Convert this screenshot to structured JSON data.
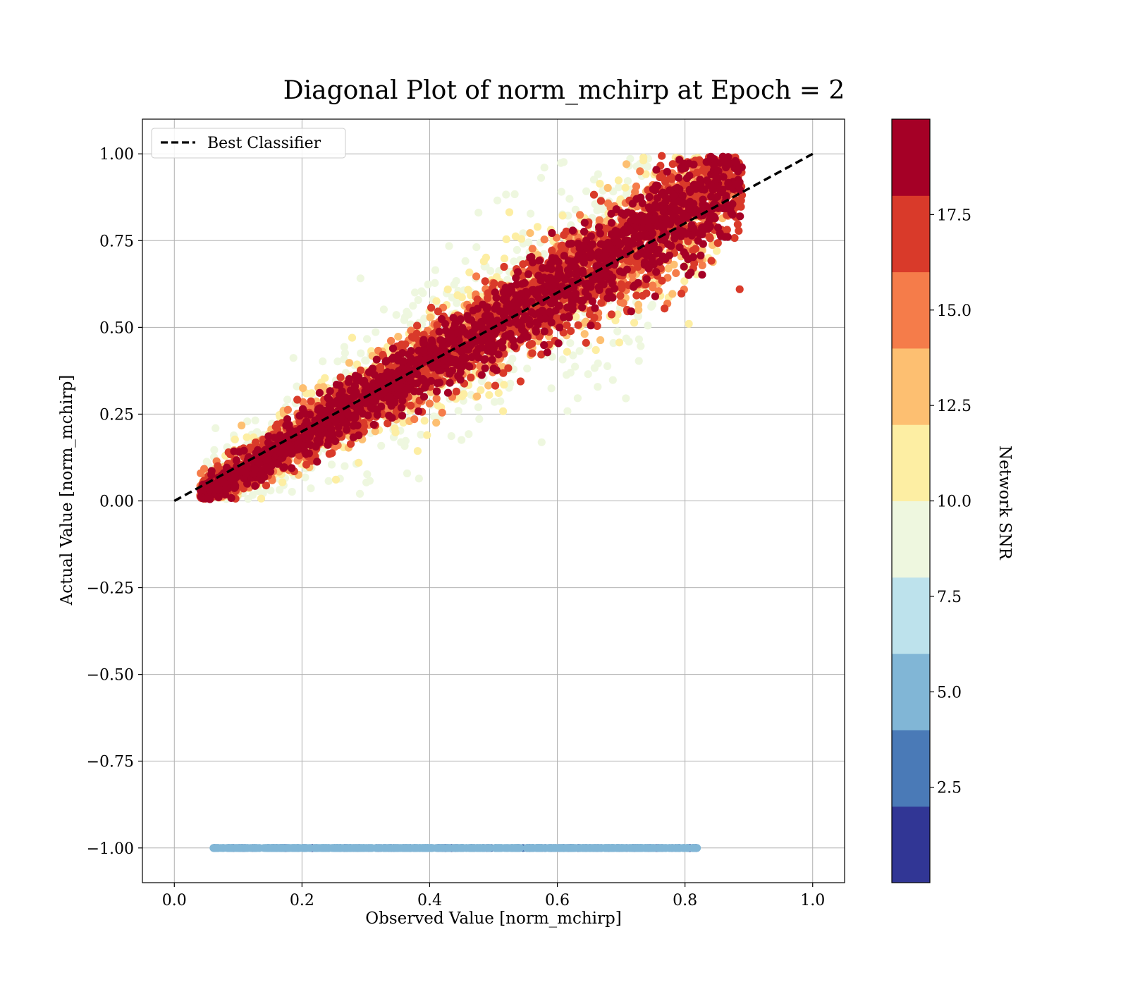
{
  "chart_data": {
    "type": "scatter",
    "title": "Diagonal Plot of norm_mchirp at Epoch = 2",
    "xlabel": "Observed Value [norm_mchirp]",
    "ylabel": "Actual Value [norm_mchirp]",
    "xlim": [
      -0.05,
      1.05
    ],
    "ylim": [
      -1.1,
      1.1
    ],
    "xticks": [
      "0.0",
      "0.2",
      "0.4",
      "0.6",
      "0.8",
      "1.0"
    ],
    "xtick_values": [
      0.0,
      0.2,
      0.4,
      0.6,
      0.8,
      1.0
    ],
    "yticks": [
      "1.00",
      "0.75",
      "0.50",
      "0.25",
      "0.00",
      "−0.25",
      "−0.50",
      "−0.75",
      "−1.00"
    ],
    "ytick_values": [
      1.0,
      0.75,
      0.5,
      0.25,
      0.0,
      -0.25,
      -0.5,
      -0.75,
      -1.0
    ],
    "grid": true,
    "legend": {
      "placement": "upper-left",
      "entries": [
        "Best Classifier"
      ]
    },
    "best_classifier_line": {
      "x": [
        0.0,
        1.0
      ],
      "y": [
        0.0,
        1.0
      ],
      "style": "dashed",
      "color": "#000000"
    },
    "colorbar": {
      "label": "Network SNR",
      "range": [
        0.0,
        20.0
      ],
      "bands": [
        {
          "from": 0.0,
          "to": 2.0,
          "color": "#313695"
        },
        {
          "from": 2.0,
          "to": 4.0,
          "color": "#4a7ab7"
        },
        {
          "from": 4.0,
          "to": 6.0,
          "color": "#81b6d6"
        },
        {
          "from": 6.0,
          "to": 8.0,
          "color": "#bde2ec"
        },
        {
          "from": 8.0,
          "to": 10.0,
          "color": "#eef7df"
        },
        {
          "from": 10.0,
          "to": 12.0,
          "color": "#fdeea3"
        },
        {
          "from": 12.0,
          "to": 14.0,
          "color": "#fdbf71"
        },
        {
          "from": 14.0,
          "to": 16.0,
          "color": "#f57c4a"
        },
        {
          "from": 16.0,
          "to": 18.0,
          "color": "#d93a2a"
        },
        {
          "from": 18.0,
          "to": 20.0,
          "color": "#a50026"
        }
      ],
      "ticks": [
        "2.5",
        "5.0",
        "7.5",
        "10.0",
        "12.5",
        "15.0",
        "17.5"
      ],
      "tick_values": [
        2.5,
        5.0,
        7.5,
        10.0,
        12.5,
        15.0,
        17.5
      ]
    },
    "series_clusters": [
      {
        "snr_band": 8.0,
        "x_range": [
          0.05,
          0.75
        ],
        "y_offset_sd": 0.14,
        "slope": 1.08
      },
      {
        "snr_band": 10.0,
        "x_range": [
          0.05,
          0.85
        ],
        "y_offset_sd": 0.09,
        "slope": 1.08
      },
      {
        "snr_band": 12.5,
        "x_range": [
          0.04,
          0.86
        ],
        "y_offset_sd": 0.07,
        "slope": 1.08
      },
      {
        "snr_band": 15.0,
        "x_range": [
          0.04,
          0.88
        ],
        "y_offset_sd": 0.06,
        "slope": 1.08
      },
      {
        "snr_band": 17.0,
        "x_range": [
          0.04,
          0.89
        ],
        "y_offset_sd": 0.06,
        "slope": 1.08
      },
      {
        "snr_band": 19.0,
        "x_range": [
          0.04,
          0.89
        ],
        "y_offset_sd": 0.05,
        "slope": 1.08
      }
    ],
    "invalid_row": {
      "y": -1.0,
      "x_range": [
        0.06,
        0.82
      ],
      "colors_snr": [
        1.0,
        3.0,
        5.0
      ]
    }
  }
}
